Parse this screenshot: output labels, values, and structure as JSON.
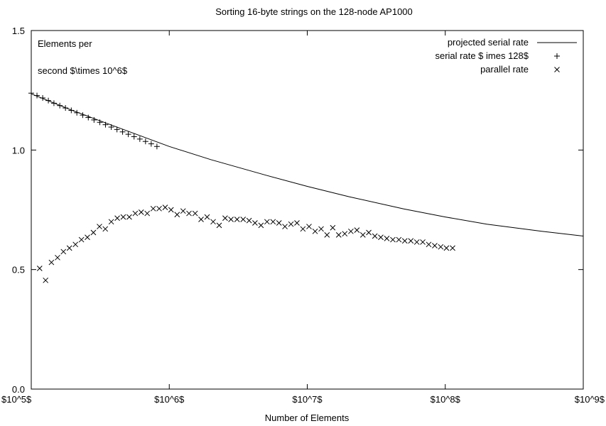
{
  "chart_data": {
    "type": "line",
    "title": "Sorting 16-byte strings on the 128-node AP1000",
    "xlabel": "Number of Elements",
    "ylabel_lines": [
      "Elements per",
      "second $\\times 10^6$"
    ],
    "x_scale": "log",
    "xlim": [
      100000,
      1000000000
    ],
    "ylim": [
      0.0,
      1.5
    ],
    "x_ticks": [
      {
        "value": 100000,
        "label": "$10^5$"
      },
      {
        "value": 1000000,
        "label": "$10^6$"
      },
      {
        "value": 10000000,
        "label": "$10^7$"
      },
      {
        "value": 100000000,
        "label": "$10^8$"
      },
      {
        "value": 1000000000,
        "label": "$10^9$"
      }
    ],
    "y_ticks": [
      {
        "value": 0.0,
        "label": "0.0"
      },
      {
        "value": 0.5,
        "label": "0.5"
      },
      {
        "value": 1.0,
        "label": "1.0"
      },
      {
        "value": 1.5,
        "label": "1.5"
      }
    ],
    "legend_position": "top-right",
    "series": [
      {
        "name": "projected serial rate",
        "style": "line",
        "x": [
          100000,
          200000,
          400000,
          1000000,
          2000000,
          5000000,
          10000000,
          20000000,
          50000000,
          100000000,
          200000000,
          500000000,
          1000000000
        ],
        "y": [
          1.235,
          1.165,
          1.1,
          1.015,
          0.96,
          0.895,
          0.848,
          0.805,
          0.754,
          0.72,
          0.69,
          0.66,
          0.64
        ]
      },
      {
        "name": "serial rate $ imes 128$",
        "style": "plus",
        "x": [
          100000,
          110000,
          121000,
          133000,
          146000,
          161000,
          177000,
          195000,
          214000,
          236000,
          259000,
          285000,
          314000,
          345000,
          380000,
          418000,
          459000,
          505000,
          556000,
          612000,
          673000,
          740000,
          814000
        ],
        "y": [
          1.238,
          1.228,
          1.218,
          1.207,
          1.196,
          1.186,
          1.176,
          1.166,
          1.156,
          1.146,
          1.136,
          1.126,
          1.116,
          1.106,
          1.096,
          1.086,
          1.076,
          1.066,
          1.056,
          1.046,
          1.036,
          1.026,
          1.015
        ]
      },
      {
        "name": "parallel rate",
        "style": "cross",
        "x": [
          115000,
          127000,
          140000,
          155000,
          171000,
          189000,
          209000,
          231000,
          255000,
          282000,
          312000,
          344000,
          380000,
          420000,
          464000,
          513000,
          567000,
          626000,
          692000,
          765000,
          845000,
          934000,
          1030000,
          1140000,
          1260000,
          1390000,
          1540000,
          1700000,
          1880000,
          2080000,
          2300000,
          2540000,
          2800000,
          3100000,
          3430000,
          3790000,
          4180000,
          4620000,
          5110000,
          5650000,
          6240000,
          6890000,
          7620000,
          8420000,
          9300000,
          10300000,
          11400000,
          12600000,
          13900000,
          15300000,
          16900000,
          18700000,
          20700000,
          22900000,
          25300000,
          27900000,
          30900000,
          34100000,
          37700000,
          41700000,
          46100000,
          50900000,
          56300000,
          62200000,
          68700000,
          75900000,
          83900000,
          92700000,
          102000000,
          113000000
        ],
        "y": [
          0.505,
          0.455,
          0.53,
          0.55,
          0.575,
          0.59,
          0.605,
          0.625,
          0.635,
          0.655,
          0.68,
          0.67,
          0.7,
          0.715,
          0.72,
          0.72,
          0.735,
          0.74,
          0.735,
          0.755,
          0.755,
          0.76,
          0.75,
          0.73,
          0.745,
          0.735,
          0.735,
          0.71,
          0.72,
          0.7,
          0.685,
          0.715,
          0.71,
          0.71,
          0.71,
          0.705,
          0.695,
          0.685,
          0.7,
          0.7,
          0.695,
          0.68,
          0.69,
          0.695,
          0.67,
          0.68,
          0.66,
          0.67,
          0.645,
          0.675,
          0.645,
          0.65,
          0.66,
          0.665,
          0.645,
          0.655,
          0.64,
          0.635,
          0.63,
          0.625,
          0.625,
          0.62,
          0.62,
          0.615,
          0.615,
          0.605,
          0.6,
          0.595,
          0.59,
          0.59
        ]
      }
    ]
  }
}
